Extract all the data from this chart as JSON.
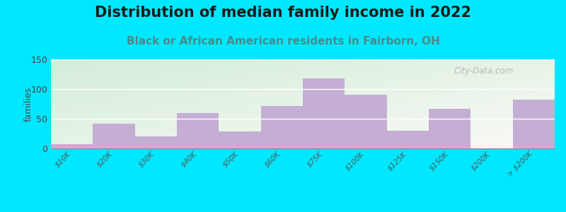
{
  "title": "Distribution of median family income in 2022",
  "subtitle": "Black or African American residents in Fairborn, OH",
  "ylabel": "families",
  "categories": [
    "$10K",
    "$20K",
    "$30K",
    "$40K",
    "$50K",
    "$60K",
    "$75K",
    "$100K",
    "$125K",
    "$150K",
    "$200K",
    "> $200K"
  ],
  "values": [
    7,
    42,
    20,
    60,
    28,
    72,
    118,
    90,
    30,
    67,
    0,
    82
  ],
  "bar_color": "#c5aed4",
  "bg_outer": "#00e8ff",
  "bg_gradient_colors": [
    "#d4edda",
    "#f0f4e8",
    "#f5f8ee",
    "#fafaf0",
    "#fffff8"
  ],
  "ylim": [
    0,
    150
  ],
  "yticks": [
    0,
    50,
    100,
    150
  ],
  "title_fontsize": 15,
  "subtitle_fontsize": 11,
  "watermark": "City-Data.com"
}
